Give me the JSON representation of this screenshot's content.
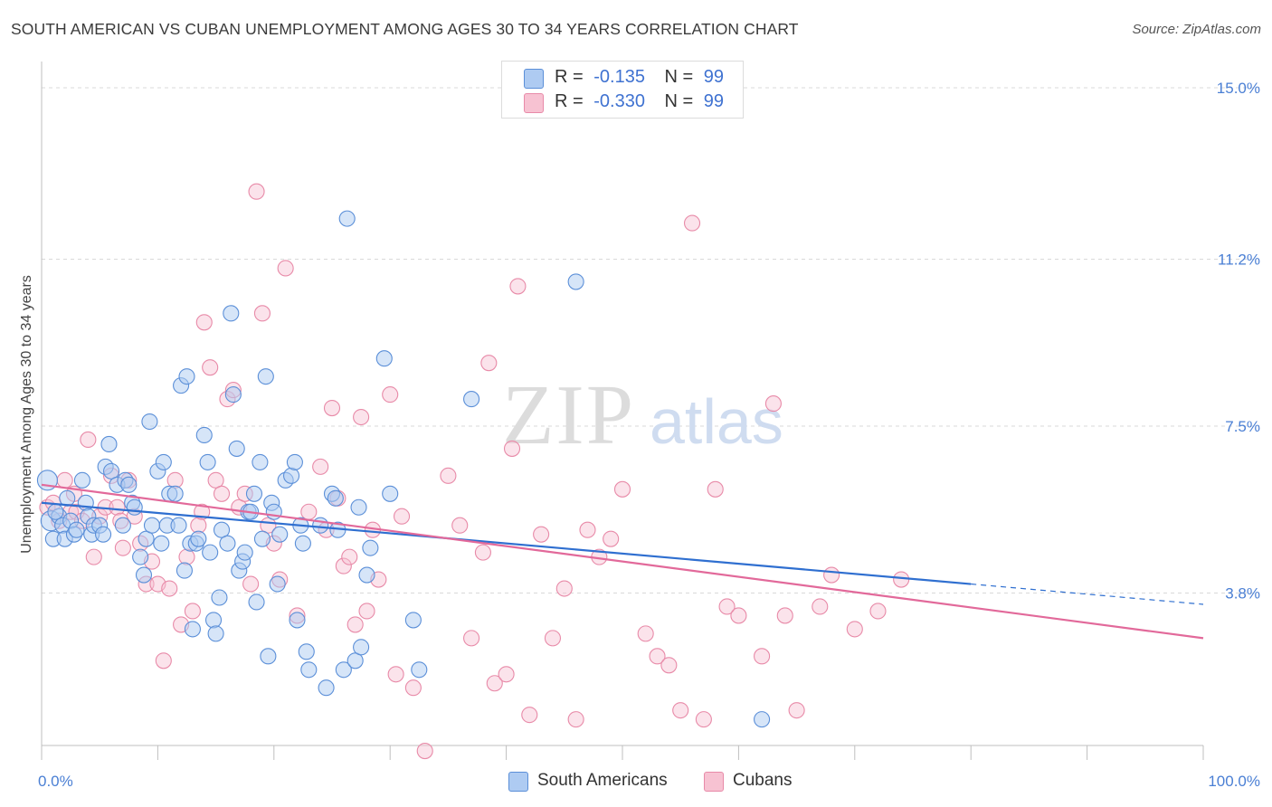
{
  "title": "SOUTH AMERICAN VS CUBAN UNEMPLOYMENT AMONG AGES 30 TO 34 YEARS CORRELATION CHART",
  "source": "Source: ZipAtlas.com",
  "watermark": {
    "zip": "ZIP",
    "atlas": "atlas"
  },
  "colors": {
    "blue_fill": "#aecbf2",
    "blue_stroke": "#5b8fd8",
    "blue_line": "#2f6fd0",
    "pink_fill": "#f7c2d2",
    "pink_stroke": "#e88aa8",
    "pink_line": "#e2699a",
    "tick_text": "#4a7fd4"
  },
  "legend": {
    "row1": {
      "r_label": "R =",
      "r_value": "-0.135",
      "n_label": "N =",
      "n_value": "99"
    },
    "row2": {
      "r_label": "R =",
      "r_value": "-0.330",
      "n_label": "N =",
      "n_value": "99"
    }
  },
  "chart_data": {
    "type": "scatter",
    "title": "SOUTH AMERICAN VS CUBAN UNEMPLOYMENT AMONG AGES 30 TO 34 YEARS CORRELATION CHART",
    "xlabel": "",
    "ylabel": "Unemployment Among Ages 30 to 34 years",
    "xlim": [
      0,
      100
    ],
    "ylim": [
      0,
      15.5
    ],
    "x_tick_labels": [
      "0.0%",
      "100.0%"
    ],
    "y_ticks": [
      3.8,
      7.5,
      11.2,
      15.0
    ],
    "y_tick_labels": [
      "3.8%",
      "7.5%",
      "11.2%",
      "15.0%"
    ],
    "grid": true,
    "legend_position": "top-center",
    "series": [
      {
        "name": "South Americans",
        "color": "#5b8fd8",
        "r": -0.135,
        "n": 99,
        "trend": {
          "x0": 0,
          "y0": 5.8,
          "x1": 80,
          "y1": 4.0,
          "dashed_to_x": 100,
          "dashed_to_y": 3.55
        },
        "points": [
          [
            0.5,
            6.3
          ],
          [
            0.8,
            5.4
          ],
          [
            1.0,
            5.0
          ],
          [
            1.5,
            5.5
          ],
          [
            1.8,
            5.3
          ],
          [
            2.0,
            5.0
          ],
          [
            2.5,
            5.4
          ],
          [
            2.8,
            5.1
          ],
          [
            3.0,
            5.2
          ],
          [
            3.5,
            6.3
          ],
          [
            3.8,
            5.8
          ],
          [
            4.0,
            5.5
          ],
          [
            4.3,
            5.1
          ],
          [
            4.5,
            5.3
          ],
          [
            5.0,
            5.3
          ],
          [
            5.3,
            5.1
          ],
          [
            5.5,
            6.6
          ],
          [
            5.8,
            7.1
          ],
          [
            6.0,
            6.5
          ],
          [
            6.5,
            6.2
          ],
          [
            7.0,
            5.3
          ],
          [
            7.2,
            6.3
          ],
          [
            7.5,
            6.2
          ],
          [
            7.8,
            5.8
          ],
          [
            8.0,
            5.7
          ],
          [
            8.5,
            4.6
          ],
          [
            8.8,
            4.2
          ],
          [
            9.0,
            5.0
          ],
          [
            9.3,
            7.6
          ],
          [
            9.5,
            5.3
          ],
          [
            10.0,
            6.5
          ],
          [
            10.3,
            4.9
          ],
          [
            10.5,
            6.7
          ],
          [
            10.8,
            5.3
          ],
          [
            11.0,
            6.0
          ],
          [
            11.5,
            6.0
          ],
          [
            11.8,
            5.3
          ],
          [
            12.0,
            8.4
          ],
          [
            12.3,
            4.3
          ],
          [
            12.5,
            8.6
          ],
          [
            12.8,
            4.9
          ],
          [
            13.0,
            3.0
          ],
          [
            13.3,
            4.9
          ],
          [
            13.5,
            5.0
          ],
          [
            14.0,
            7.3
          ],
          [
            14.3,
            6.7
          ],
          [
            14.5,
            4.7
          ],
          [
            14.8,
            3.2
          ],
          [
            15.0,
            2.9
          ],
          [
            15.3,
            3.7
          ],
          [
            15.5,
            5.2
          ],
          [
            16.0,
            4.9
          ],
          [
            16.3,
            10.0
          ],
          [
            16.5,
            8.2
          ],
          [
            16.8,
            7.0
          ],
          [
            17.0,
            4.3
          ],
          [
            17.3,
            4.5
          ],
          [
            17.5,
            4.7
          ],
          [
            17.8,
            5.6
          ],
          [
            18.0,
            5.6
          ],
          [
            18.3,
            6.0
          ],
          [
            18.5,
            3.6
          ],
          [
            18.8,
            6.7
          ],
          [
            19.0,
            5.0
          ],
          [
            19.3,
            8.6
          ],
          [
            19.5,
            2.4
          ],
          [
            19.8,
            5.8
          ],
          [
            20.0,
            5.6
          ],
          [
            20.3,
            4.0
          ],
          [
            20.5,
            5.1
          ],
          [
            21.0,
            6.3
          ],
          [
            21.5,
            6.4
          ],
          [
            21.8,
            6.7
          ],
          [
            22.0,
            3.2
          ],
          [
            22.3,
            5.3
          ],
          [
            22.5,
            4.9
          ],
          [
            22.8,
            2.5
          ],
          [
            23.0,
            2.1
          ],
          [
            24.0,
            5.3
          ],
          [
            24.5,
            1.7
          ],
          [
            25.0,
            6.0
          ],
          [
            25.3,
            5.9
          ],
          [
            25.5,
            5.2
          ],
          [
            26.0,
            2.1
          ],
          [
            26.3,
            12.1
          ],
          [
            27.0,
            2.3
          ],
          [
            27.3,
            5.7
          ],
          [
            27.5,
            2.6
          ],
          [
            28.0,
            4.2
          ],
          [
            28.3,
            4.8
          ],
          [
            29.5,
            9.0
          ],
          [
            30.0,
            6.0
          ],
          [
            32.0,
            3.2
          ],
          [
            32.5,
            2.1
          ],
          [
            37.0,
            8.1
          ],
          [
            46.0,
            10.7
          ],
          [
            62.0,
            1.0
          ],
          [
            1.2,
            5.6
          ],
          [
            2.2,
            5.9
          ]
        ]
      },
      {
        "name": "Cubans",
        "color": "#e88aa8",
        "r": -0.33,
        "n": 99,
        "trend": {
          "x0": 0,
          "y0": 6.2,
          "x1": 100,
          "y1": 2.8
        },
        "points": [
          [
            0.5,
            5.7
          ],
          [
            1.0,
            5.8
          ],
          [
            1.5,
            5.4
          ],
          [
            2.0,
            6.3
          ],
          [
            2.5,
            5.6
          ],
          [
            3.0,
            5.6
          ],
          [
            3.5,
            5.4
          ],
          [
            4.0,
            7.2
          ],
          [
            4.5,
            4.6
          ],
          [
            5.0,
            5.5
          ],
          [
            5.5,
            5.7
          ],
          [
            6.0,
            6.4
          ],
          [
            6.5,
            5.7
          ],
          [
            7.0,
            4.8
          ],
          [
            7.5,
            6.3
          ],
          [
            8.0,
            5.5
          ],
          [
            8.5,
            4.9
          ],
          [
            9.0,
            4.0
          ],
          [
            9.5,
            4.5
          ],
          [
            10.0,
            4.0
          ],
          [
            10.5,
            2.3
          ],
          [
            11.0,
            3.9
          ],
          [
            11.5,
            6.3
          ],
          [
            12.0,
            3.1
          ],
          [
            12.5,
            4.6
          ],
          [
            13.0,
            3.4
          ],
          [
            13.5,
            5.3
          ],
          [
            14.0,
            9.8
          ],
          [
            14.5,
            8.8
          ],
          [
            15.0,
            6.3
          ],
          [
            15.5,
            6.0
          ],
          [
            16.0,
            8.1
          ],
          [
            16.5,
            8.3
          ],
          [
            17.0,
            5.7
          ],
          [
            17.5,
            6.0
          ],
          [
            18.0,
            4.0
          ],
          [
            18.5,
            12.7
          ],
          [
            19.0,
            10.0
          ],
          [
            19.5,
            5.3
          ],
          [
            20.0,
            4.9
          ],
          [
            20.5,
            4.1
          ],
          [
            21.0,
            11.0
          ],
          [
            22.0,
            3.3
          ],
          [
            23.0,
            5.6
          ],
          [
            24.0,
            6.6
          ],
          [
            24.5,
            5.2
          ],
          [
            25.0,
            7.9
          ],
          [
            25.5,
            5.9
          ],
          [
            26.0,
            4.4
          ],
          [
            26.5,
            4.6
          ],
          [
            27.0,
            3.1
          ],
          [
            27.5,
            7.7
          ],
          [
            28.0,
            3.4
          ],
          [
            28.5,
            5.2
          ],
          [
            29.0,
            4.1
          ],
          [
            30.0,
            8.2
          ],
          [
            30.5,
            2.0
          ],
          [
            31.0,
            5.5
          ],
          [
            32.0,
            1.7
          ],
          [
            33.0,
            0.3
          ],
          [
            35.0,
            6.4
          ],
          [
            36.0,
            5.3
          ],
          [
            37.0,
            2.8
          ],
          [
            38.0,
            4.7
          ],
          [
            38.5,
            8.9
          ],
          [
            39.0,
            1.8
          ],
          [
            40.0,
            2.0
          ],
          [
            40.5,
            7.0
          ],
          [
            41.0,
            10.6
          ],
          [
            42.0,
            1.1
          ],
          [
            43.0,
            5.1
          ],
          [
            44.0,
            2.8
          ],
          [
            45.0,
            3.9
          ],
          [
            46.0,
            1.0
          ],
          [
            47.0,
            5.2
          ],
          [
            48.0,
            4.6
          ],
          [
            49.0,
            5.0
          ],
          [
            50.0,
            6.1
          ],
          [
            52.0,
            2.9
          ],
          [
            53.0,
            2.4
          ],
          [
            54.0,
            2.2
          ],
          [
            55.0,
            1.2
          ],
          [
            56.0,
            12.0
          ],
          [
            57.0,
            1.0
          ],
          [
            58.0,
            6.1
          ],
          [
            59.0,
            3.5
          ],
          [
            60.0,
            3.3
          ],
          [
            62.0,
            2.4
          ],
          [
            63.0,
            8.0
          ],
          [
            64.0,
            3.3
          ],
          [
            65.0,
            1.2
          ],
          [
            67.0,
            3.5
          ],
          [
            68.0,
            4.2
          ],
          [
            70.0,
            3.0
          ],
          [
            72.0,
            3.4
          ],
          [
            74.0,
            4.1
          ],
          [
            2.8,
            6.0
          ],
          [
            6.8,
            5.4
          ],
          [
            13.8,
            5.6
          ]
        ]
      }
    ]
  },
  "bottom_legend": {
    "item1": "South Americans",
    "item2": "Cubans"
  }
}
